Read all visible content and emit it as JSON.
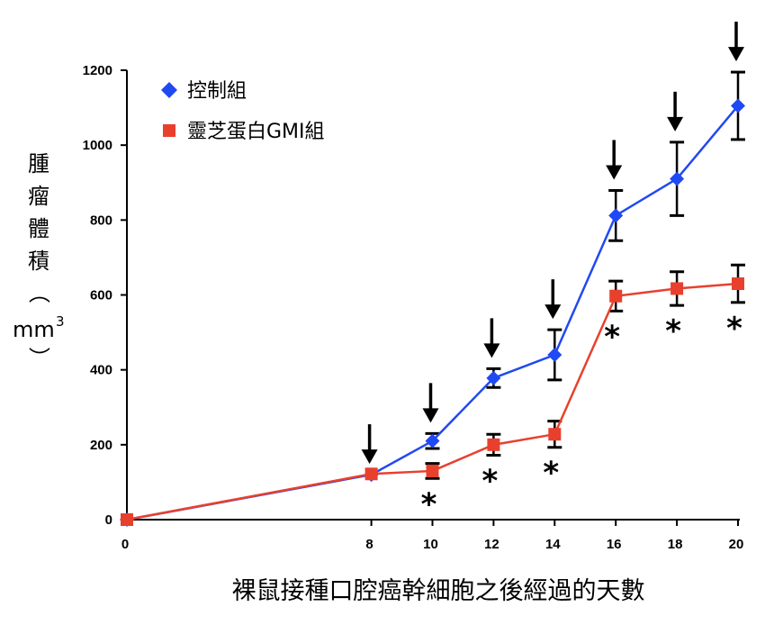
{
  "chart_data": {
    "type": "line",
    "title": "",
    "xlabel": "裸鼠接種口腔癌幹細胞之後經過的天數",
    "ylabel_chars": [
      "腫",
      "瘤",
      "體",
      "積",
      "（"
    ],
    "ylabel_unit": "mm",
    "ylabel_sup": "3",
    "ylabel_close": "）",
    "xlim": [
      0,
      20
    ],
    "ylim": [
      0,
      1200
    ],
    "x_ticks": [
      0,
      8,
      10,
      12,
      14,
      16,
      18,
      20
    ],
    "y_ticks": [
      0,
      200,
      400,
      600,
      800,
      1000,
      1200
    ],
    "x_tick_labels": [
      "0",
      "8",
      "10",
      "12",
      "14",
      "16",
      "18",
      "20"
    ],
    "y_tick_labels": [
      "0",
      "200",
      "400",
      "600",
      "800",
      "1000",
      "1200"
    ],
    "series": [
      {
        "name": "控制組",
        "color": "#1f49f2",
        "marker": "diamond",
        "x": [
          0,
          8,
          10,
          12,
          14,
          16,
          18,
          20
        ],
        "values": [
          0,
          120,
          210,
          378,
          440,
          812,
          910,
          1105
        ],
        "error": [
          0,
          0,
          20,
          25,
          67,
          67,
          98,
          90
        ]
      },
      {
        "name": "靈芝蛋白GMI組",
        "color": "#e8402d",
        "marker": "square",
        "x": [
          0,
          8,
          10,
          12,
          14,
          16,
          18,
          20
        ],
        "values": [
          0,
          122,
          130,
          200,
          228,
          597,
          617,
          630
        ],
        "error": [
          0,
          0,
          20,
          28,
          35,
          40,
          45,
          50
        ]
      }
    ],
    "arrows_x": [
      8,
      10,
      12,
      14,
      16,
      18,
      20
    ],
    "significance": {
      "symbol": "*",
      "x": [
        10,
        12,
        14,
        16,
        18,
        20
      ]
    },
    "legend_position": "top-left"
  }
}
